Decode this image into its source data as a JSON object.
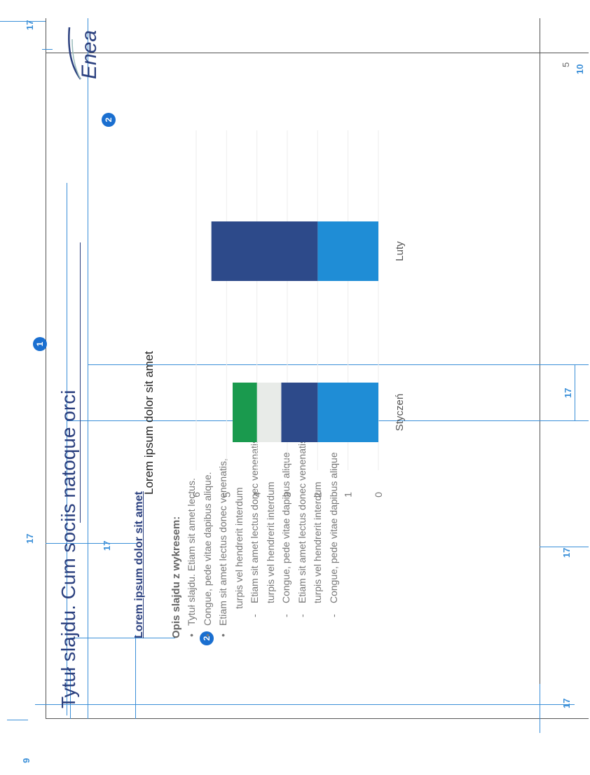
{
  "slide": {
    "title": "Tytuł slajdu. Cum sociis natoque orci",
    "subheading": "Lorem ipsum dolor sit amet",
    "description_heading": "Opis slajdu z wykresem:",
    "description_items": [
      {
        "level": 1,
        "text": "Tytuł slajdu. Etiam sit amet lectus."
      },
      {
        "level": 1,
        "text": "Congue, pede vitae dapibus alique."
      },
      {
        "level": 1,
        "text": "Etiam sit amet lectus donec venenatis,"
      },
      {
        "level": 0,
        "text": "turpis vel hendrerit interdum"
      },
      {
        "level": 2,
        "text": "Etiam sit amet lectus donec venenatis,"
      },
      {
        "level": 3,
        "text": "turpis vel hendrerit interdum"
      },
      {
        "level": 2,
        "text": "Congue, pede vitae dapibus alique"
      },
      {
        "level": 2,
        "text": "Etiam sit amet lectus donec venenatis,"
      },
      {
        "level": 3,
        "text": "turpis vel hendrerit interdum"
      },
      {
        "level": 2,
        "text": "Congue, pede vitae dapibus alique"
      }
    ]
  },
  "logo": {
    "text": "Enea",
    "color": "#2a3f7e"
  },
  "badges": {
    "one": "1",
    "two": "2"
  },
  "dimensions": {
    "top_margin": "17",
    "title_gap": "17",
    "left_margin": "17",
    "right_margin": "17",
    "column_gap": "17",
    "bottom_margin": "17",
    "title_offset": "9",
    "logo_offset": "10",
    "logo_gap": "5"
  },
  "chart_data": {
    "type": "bar",
    "stacked": true,
    "title": "Lorem ipsum dolor sit amet",
    "categories": [
      "Styczeń",
      "Luty"
    ],
    "series": [
      {
        "values": [
          2.0,
          2.0
        ],
        "color": "#1f8dd6"
      },
      {
        "values": [
          1.2,
          3.5
        ],
        "color": "#2d4a8a"
      },
      {
        "values": [
          0.8,
          0
        ],
        "color": "#e8ebe8"
      },
      {
        "values": [
          0.8,
          0
        ],
        "color": "#1a9a4e"
      }
    ],
    "ylim": [
      0,
      6
    ],
    "yticks": [
      "0",
      "1",
      "2",
      "3",
      "4",
      "5",
      "6"
    ],
    "grid": true,
    "legend": false
  }
}
